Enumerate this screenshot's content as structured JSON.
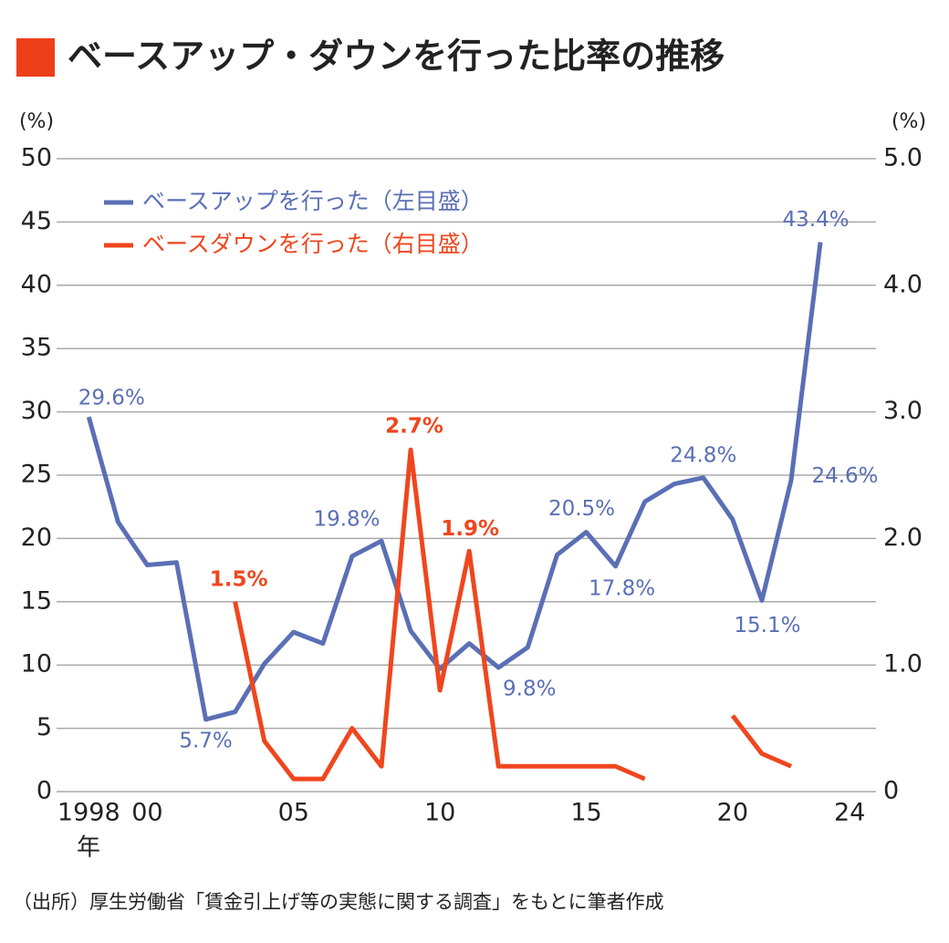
{
  "chart_data": {
    "type": "line",
    "title": "ベースアップ・ダウンを行った比率の推移",
    "source": "（出所）厚生労働省「賃金引上げ等の実態に関する調査」をもとに筆者作成",
    "x_unit": "年",
    "y_unit": "(%)",
    "y2_unit": "(%)",
    "x": [
      1998,
      1999,
      2000,
      2001,
      2002,
      2003,
      2004,
      2005,
      2006,
      2007,
      2008,
      2009,
      2010,
      2011,
      2012,
      2013,
      2014,
      2015,
      2016,
      2017,
      2018,
      2019,
      2020,
      2021,
      2022,
      2023
    ],
    "xlim": [
      1996.9,
      2024.9
    ],
    "xticks": [
      1998,
      {
        "value": 2000,
        "label": "00"
      },
      {
        "value": 2005,
        "label": "05"
      },
      {
        "value": 2010,
        "label": "10"
      },
      {
        "value": 2015,
        "label": "15"
      },
      {
        "value": 2020,
        "label": "20"
      },
      {
        "value": 2024,
        "label": "24"
      }
    ],
    "ylim": [
      0,
      50
    ],
    "yticks": [
      0,
      5,
      10,
      15,
      20,
      25,
      30,
      35,
      40,
      45,
      50
    ],
    "y2lim": [
      0,
      5
    ],
    "y2ticks": [
      0,
      {
        "value": 1,
        "label": "1.0"
      },
      {
        "value": 2,
        "label": "2.0"
      },
      {
        "value": 3,
        "label": "3.0"
      },
      {
        "value": 4,
        "label": "4.0"
      },
      {
        "value": 5,
        "label": "5.0"
      }
    ],
    "grid": true,
    "legend": "upper left",
    "series": [
      {
        "name": "ベースアップを行った（左目盛）",
        "color": "#5a6fb5",
        "values": [
          29.6,
          21.3,
          17.9,
          18.1,
          5.7,
          6.3,
          10.1,
          12.6,
          11.7,
          18.6,
          19.8,
          12.7,
          9.7,
          11.7,
          9.8,
          11.4,
          18.7,
          20.5,
          17.8,
          22.9,
          24.3,
          24.8,
          21.5,
          15.1,
          24.6,
          43.4
        ],
        "value_labels": [
          "29.6%",
          null,
          null,
          null,
          "5.7%",
          null,
          null,
          null,
          null,
          null,
          "19.8%",
          null,
          null,
          null,
          "9.8%",
          null,
          null,
          "20.5%",
          "17.8%",
          null,
          null,
          "24.8%",
          null,
          "15.1%",
          "24.6%",
          "43.4%"
        ]
      },
      {
        "name": "ベースダウンを行った（右目盛）",
        "color": "#f0461e",
        "axis": "y2",
        "values": [
          null,
          null,
          null,
          null,
          null,
          1.5,
          0.4,
          0.1,
          0.1,
          0.5,
          0.2,
          2.7,
          0.8,
          1.9,
          0.2,
          0.2,
          0.2,
          0.2,
          0.2,
          0.1,
          null,
          null,
          0.6,
          0.3,
          0.2,
          null
        ],
        "value_labels": [
          null,
          null,
          null,
          null,
          null,
          "1.5%",
          null,
          null,
          null,
          null,
          null,
          "2.7%",
          null,
          "1.9%",
          null,
          null,
          null,
          null,
          null,
          null,
          null,
          null,
          null,
          null,
          null,
          null
        ]
      }
    ]
  }
}
